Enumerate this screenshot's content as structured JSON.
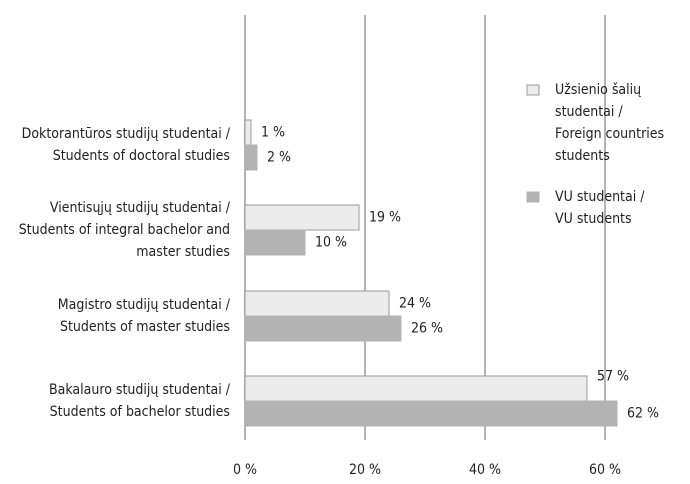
{
  "chart_data": {
    "type": "hbar",
    "categories": [
      [
        "Doktorantūros studijų studentai /",
        "Students of doctoral studies"
      ],
      [
        "Vientisųjų studijų studentai /",
        "Students of integral bachelor and",
        "master studies"
      ],
      [
        "Magistro studijų studentai /",
        "Students of master studies"
      ],
      [
        "Bakalauro studijų studentai /",
        "Students of bachelor studies"
      ]
    ],
    "series": [
      {
        "name": [
          "Užsienio šalių",
          "studentai /",
          "Foreign countries",
          "students"
        ],
        "color": "#ececec",
        "stroke": "#9a9a9a",
        "values": [
          1,
          19,
          24,
          57
        ],
        "value_labels": [
          "1 %",
          "19 %",
          "24 %",
          "57 %"
        ]
      },
      {
        "name": [
          "VU studentai /",
          "VU students"
        ],
        "color": "#b3b3b3",
        "stroke": "#b3b3b3",
        "values": [
          2,
          10,
          26,
          62
        ],
        "value_labels": [
          "2 %",
          "10 %",
          "26 %",
          "62 %"
        ]
      }
    ],
    "xlim": [
      0,
      65
    ],
    "xticks": [
      {
        "value": 0,
        "label": "0 %"
      },
      {
        "value": 20,
        "label": "20 %"
      },
      {
        "value": 40,
        "label": "40 %"
      },
      {
        "value": 60,
        "label": "60 %"
      }
    ],
    "grid": true,
    "legend": "right"
  }
}
